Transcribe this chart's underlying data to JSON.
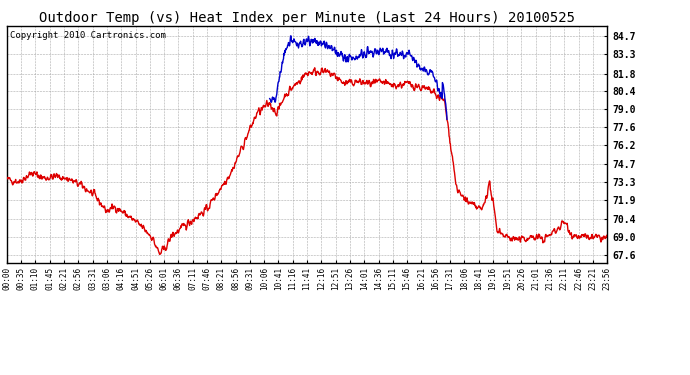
{
  "title": "Outdoor Temp (vs) Heat Index per Minute (Last 24 Hours) 20100525",
  "copyright": "Copyright 2010 Cartronics.com",
  "yticks": [
    67.6,
    69.0,
    70.4,
    71.9,
    73.3,
    74.7,
    76.2,
    77.6,
    79.0,
    80.4,
    81.8,
    83.3,
    84.7
  ],
  "ylim": [
    67.0,
    85.5
  ],
  "xtick_labels": [
    "00:00",
    "00:35",
    "01:10",
    "01:45",
    "02:21",
    "02:56",
    "03:31",
    "03:06",
    "04:16",
    "04:51",
    "05:26",
    "06:01",
    "06:36",
    "07:11",
    "07:46",
    "08:21",
    "08:56",
    "09:31",
    "10:06",
    "10:41",
    "11:16",
    "11:41",
    "12:16",
    "12:51",
    "13:26",
    "14:01",
    "14:36",
    "15:11",
    "15:46",
    "16:21",
    "16:56",
    "17:31",
    "18:06",
    "18:41",
    "19:16",
    "19:51",
    "20:26",
    "21:01",
    "21:36",
    "22:11",
    "22:46",
    "23:21",
    "23:56"
  ],
  "background_color": "#ffffff",
  "plot_bg_color": "#ffffff",
  "grid_color": "#aaaaaa",
  "line_color_red": "#dd0000",
  "line_color_blue": "#0000cc",
  "title_fontsize": 10,
  "copyright_fontsize": 6.5,
  "line_width": 1.0
}
